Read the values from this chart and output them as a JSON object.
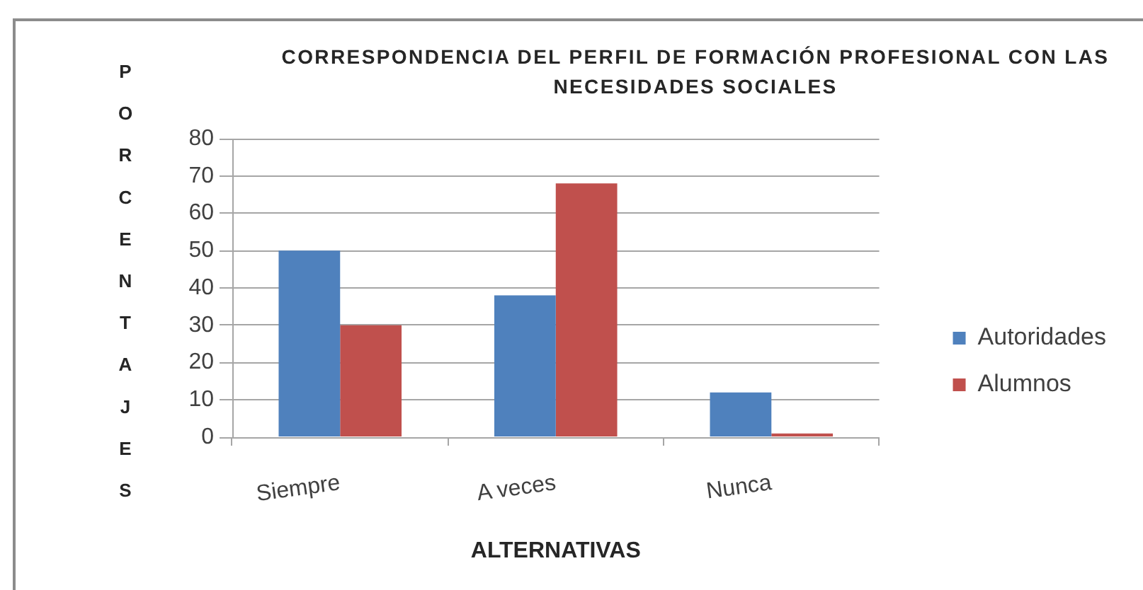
{
  "chart_data": {
    "type": "bar",
    "title": "CORRESPONDENCIA DEL PERFIL DE FORMACIÓN PROFESIONAL CON LAS NECESIDADES SOCIALES",
    "xlabel": "ALTERNATIVAS",
    "ylabel": "PORCENTAJES",
    "categories": [
      "Siempre",
      "A veces",
      "Nunca"
    ],
    "series": [
      {
        "name": "Autoridades",
        "color": "#4f81bd",
        "values": [
          50,
          38,
          12
        ]
      },
      {
        "name": "Alumnos",
        "color": "#c0504d",
        "values": [
          30,
          68,
          1
        ]
      }
    ],
    "ylim": [
      0,
      80
    ],
    "yticks": [
      0,
      10,
      20,
      30,
      40,
      50,
      60,
      70,
      80
    ],
    "grid": "y",
    "legend": "right"
  }
}
